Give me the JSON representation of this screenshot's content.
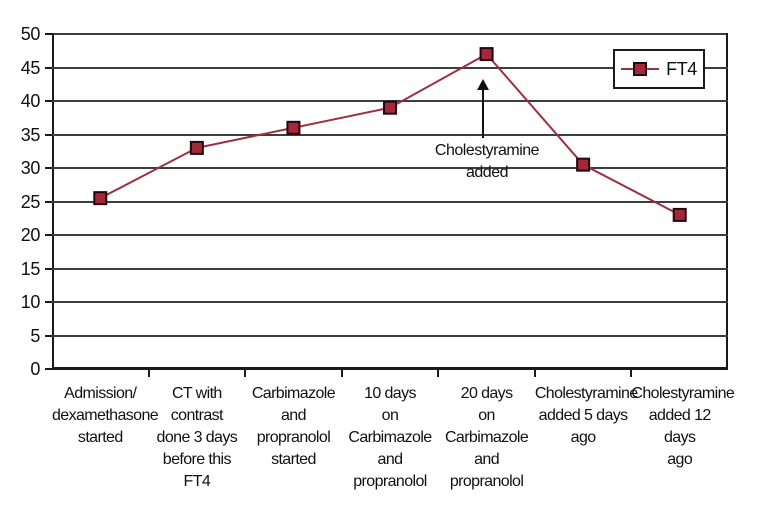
{
  "chart_data": {
    "type": "line",
    "title": "",
    "xlabel": "",
    "ylabel": "",
    "categories": [
      "Admission/\ndexamethasone\nstarted",
      "CT with\ncontrast\ndone 3 days\nbefore this FT4",
      "Carbimazole\nand\npropranolol\nstarted",
      "10 days\non\nCarbimazole\nand\npropranolol",
      "20 days\non\nCarbimazole\nand\npropranolol",
      "Cholestyramine\nadded 5 days\nago",
      "Cholestyramine\nadded 12 days\nago"
    ],
    "series": [
      {
        "name": "FT4",
        "values": [
          25.5,
          33,
          36,
          39,
          47,
          30.5,
          23
        ]
      }
    ],
    "ylim": [
      0,
      50
    ],
    "yticks": [
      "0",
      "5",
      "10",
      "15",
      "20",
      "25",
      "30",
      "35",
      "40",
      "45",
      "50"
    ],
    "grid": true,
    "legend": {
      "label": "FT4",
      "position": "top-right"
    },
    "annotation": {
      "text": "Cholestyramine\nadded",
      "points_to_value": 47
    },
    "colors": {
      "line": "#9c2f3f",
      "marker_fill": "#a42839",
      "marker_border": "#20080d",
      "gridline": "#3d3d3d",
      "axis": "#1a1a1a",
      "text": "#111111"
    }
  }
}
